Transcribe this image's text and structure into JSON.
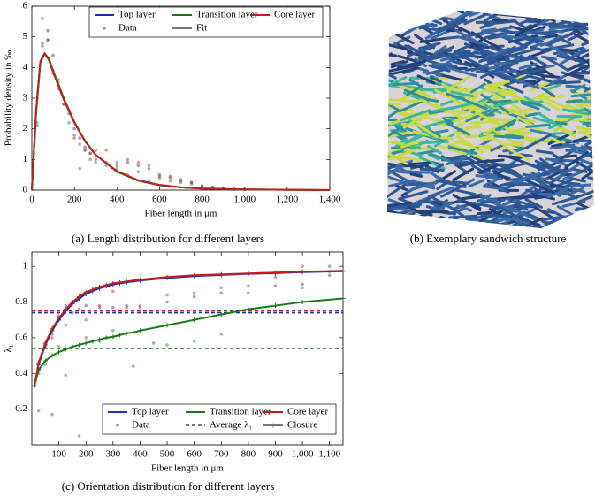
{
  "chart_data": [
    {
      "type": "line",
      "x_label": "Fiber length in μm",
      "y_label": "Probability density in ‰",
      "xlim": [
        0,
        1400
      ],
      "ylim": [
        0,
        6
      ],
      "xticks": [
        0,
        200,
        400,
        600,
        800,
        {
          "value": 1000,
          "label": "1,000"
        },
        {
          "value": 1200,
          "label": "1,200"
        },
        {
          "value": 1400,
          "label": "1,400"
        }
      ],
      "yticks": [
        0,
        1,
        2,
        3,
        4,
        5,
        6
      ],
      "legend": "upper right",
      "legend_styles": [
        "Data",
        "Fit"
      ],
      "series": [
        {
          "name": "Top layer",
          "color": "#1f2fb0",
          "x": [
            0,
            20,
            40,
            60,
            80,
            100,
            150,
            200,
            250,
            300,
            400,
            500,
            600,
            700,
            800,
            1000,
            1200,
            1400
          ],
          "values": [
            0,
            2.55,
            4.2,
            4.46,
            4.27,
            3.87,
            2.97,
            2.2,
            1.6,
            1.15,
            0.61,
            0.32,
            0.17,
            0.09,
            0.05,
            0.02,
            0.01,
            0
          ],
          "data": {
            "x": [
              25,
              50,
              75,
              100,
              125,
              150,
              175,
              200,
              225,
              250,
              275,
              300,
              350,
              400,
              450,
              500,
              550,
              600,
              650,
              700,
              750,
              800,
              850,
              900,
              950,
              1000
            ],
            "values": [
              2.1,
              4.8,
              5.2,
              4.4,
              3.6,
              3.0,
              2.5,
              2.0,
              1.7,
              1.4,
              1.2,
              1.0,
              0.9,
              0.8,
              0.9,
              0.8,
              0.7,
              0.5,
              0.45,
              0.35,
              0.25,
              0.15,
              0.1,
              0.05,
              0.03,
              0.02
            ]
          }
        },
        {
          "name": "Transition layer",
          "color": "#167a16",
          "x": [
            0,
            20,
            40,
            60,
            80,
            100,
            150,
            200,
            250,
            300,
            400,
            500,
            600,
            700,
            800,
            1000,
            1200,
            1400
          ],
          "values": [
            0,
            2.5,
            4.15,
            4.45,
            4.3,
            3.9,
            3.0,
            2.22,
            1.6,
            1.15,
            0.6,
            0.31,
            0.16,
            0.09,
            0.05,
            0.02,
            0.01,
            0
          ],
          "data": {
            "x": [
              25,
              50,
              75,
              100,
              125,
              150,
              175,
              200,
              225,
              250,
              275,
              300,
              350,
              400,
              450,
              500,
              550,
              600,
              650,
              700,
              750,
              800,
              850,
              900,
              950,
              1000
            ],
            "values": [
              2.2,
              5.6,
              4.9,
              3.9,
              3.5,
              2.8,
              2.2,
              1.8,
              0.7,
              1.3,
              1.0,
              0.9,
              0.8,
              0.7,
              0.5,
              0.6,
              0.3,
              0.4,
              0.3,
              0.25,
              0.2,
              0.1,
              0.08,
              0.05,
              0.03,
              0.02
            ]
          }
        },
        {
          "name": "Core layer",
          "color": "#c0201c",
          "x": [
            0,
            20,
            40,
            60,
            80,
            100,
            150,
            200,
            250,
            300,
            400,
            500,
            600,
            700,
            800,
            1000,
            1200,
            1400
          ],
          "values": [
            0,
            2.6,
            4.2,
            4.45,
            4.25,
            3.85,
            2.95,
            2.2,
            1.6,
            1.15,
            0.62,
            0.32,
            0.17,
            0.09,
            0.05,
            0.02,
            0.01,
            0
          ],
          "data": {
            "x": [
              25,
              50,
              75,
              100,
              125,
              150,
              175,
              200,
              225,
              250,
              275,
              300,
              350,
              400,
              450,
              500,
              550,
              600,
              650,
              700,
              750,
              800,
              850,
              900,
              950,
              1000
            ],
            "values": [
              3.0,
              4.7,
              4.9,
              3.8,
              3.3,
              2.8,
              2.6,
              1.7,
              1.5,
              1.3,
              1.2,
              1.3,
              1.3,
              0.9,
              1.0,
              0.9,
              0.8,
              0.45,
              0.4,
              0.3,
              0.25,
              0.1,
              0.08,
              0.05,
              0.03,
              0.02
            ]
          }
        }
      ]
    },
    {
      "type": "line",
      "x_label": "Fiber length in μm",
      "y_label": "λ₁",
      "xlim": [
        0,
        1150
      ],
      "ylim": [
        0,
        1.08
      ],
      "xticks": [
        100,
        200,
        300,
        400,
        500,
        600,
        700,
        800,
        900,
        {
          "value": 1000,
          "label": "1,000"
        },
        {
          "value": 1100,
          "label": "1,100"
        }
      ],
      "yticks": [
        0.2,
        0.4,
        0.6,
        0.8,
        1
      ],
      "legend": "lower right",
      "legend_styles": [
        "Data",
        "Average λ₁",
        "Closure"
      ],
      "series": [
        {
          "name": "Top layer",
          "color": "#1f2fb0",
          "average": 0.74,
          "x": [
            10,
            25,
            50,
            75,
            100,
            125,
            150,
            175,
            200,
            225,
            250,
            275,
            300,
            325,
            350,
            375,
            400,
            500,
            600,
            700,
            800,
            900,
            1000,
            1150
          ],
          "values": [
            0.33,
            0.45,
            0.56,
            0.64,
            0.7,
            0.75,
            0.79,
            0.82,
            0.845,
            0.862,
            0.877,
            0.888,
            0.898,
            0.905,
            0.91,
            0.916,
            0.92,
            0.935,
            0.945,
            0.952,
            0.958,
            0.962,
            0.967,
            0.972
          ],
          "data": {
            "x": [
              25,
              50,
              75,
              100,
              125,
              150,
              175,
              200,
              250,
              300,
              350,
              400,
              500,
              600,
              700,
              800,
              900,
              1000,
              1100
            ],
            "values": [
              0.4,
              0.55,
              0.62,
              0.72,
              0.78,
              0.74,
              0.76,
              0.78,
              0.77,
              0.77,
              0.78,
              0.77,
              0.8,
              0.83,
              0.85,
              0.85,
              0.89,
              0.9,
              0.95
            ]
          }
        },
        {
          "name": "Transition layer",
          "color": "#167a16",
          "average": 0.54,
          "x": [
            10,
            25,
            50,
            75,
            100,
            125,
            150,
            175,
            200,
            225,
            250,
            275,
            300,
            325,
            350,
            375,
            400,
            500,
            600,
            700,
            800,
            900,
            1000,
            1150
          ],
          "values": [
            0.33,
            0.42,
            0.47,
            0.5,
            0.52,
            0.535,
            0.55,
            0.56,
            0.57,
            0.58,
            0.59,
            0.6,
            0.605,
            0.615,
            0.625,
            0.63,
            0.64,
            0.67,
            0.7,
            0.73,
            0.76,
            0.78,
            0.8,
            0.82
          ],
          "data": {
            "x": [
              10,
              25,
              50,
              75,
              100,
              125,
              175,
              200,
              250,
              300,
              375,
              450,
              500,
              600,
              700,
              1000,
              1100
            ],
            "values": [
              0.33,
              0.19,
              0.45,
              0.17,
              0.55,
              0.39,
              0.05,
              0.6,
              0.58,
              0.64,
              0.44,
              0.57,
              0.56,
              0.58,
              0.62,
              0.88,
              1.0
            ]
          }
        },
        {
          "name": "Core layer",
          "color": "#c0201c",
          "average": 0.75,
          "x": [
            10,
            25,
            50,
            75,
            100,
            125,
            150,
            175,
            200,
            225,
            250,
            275,
            300,
            325,
            350,
            375,
            400,
            500,
            600,
            700,
            800,
            900,
            1000,
            1150
          ],
          "values": [
            0.33,
            0.46,
            0.57,
            0.65,
            0.71,
            0.76,
            0.8,
            0.83,
            0.855,
            0.87,
            0.885,
            0.895,
            0.905,
            0.91,
            0.915,
            0.92,
            0.925,
            0.94,
            0.95,
            0.955,
            0.96,
            0.965,
            0.97,
            0.975
          ],
          "data": {
            "x": [
              25,
              50,
              75,
              100,
              125,
              150,
              200,
              250,
              300,
              350,
              400,
              500,
              600,
              700,
              800,
              900,
              1000,
              1100
            ],
            "values": [
              0.42,
              0.56,
              0.6,
              0.7,
              0.67,
              0.8,
              0.7,
              0.78,
              0.86,
              0.77,
              0.78,
              0.84,
              0.85,
              0.88,
              0.89,
              0.94,
              1.0,
              0.97
            ]
          }
        }
      ]
    }
  ],
  "captions": [
    "(a) Length distribution for different layers",
    "(b) Exemplary sandwich structure",
    "(c) Orientation distribution for different layers"
  ]
}
